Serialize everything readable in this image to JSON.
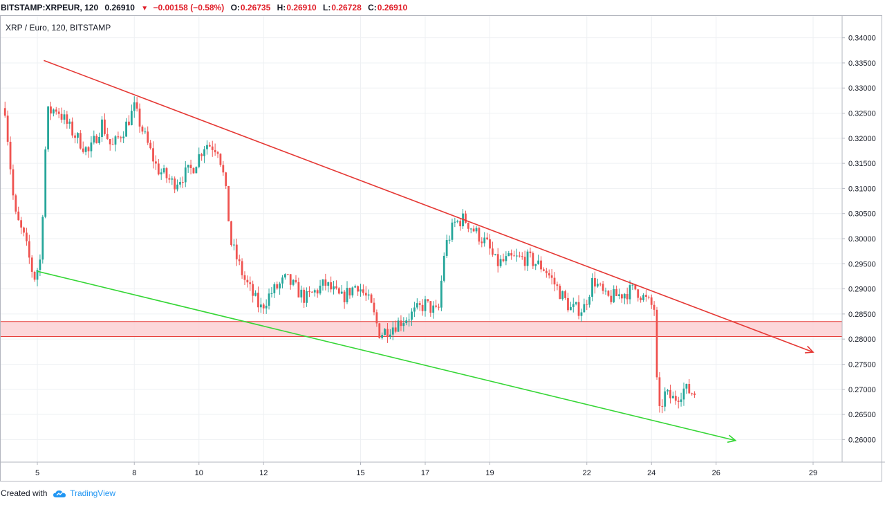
{
  "header": {
    "symbol": "BITSTAMP:XRPEUR, 120",
    "price": "0.26910",
    "change": "−0.00158 (−0.58%)",
    "o_label": "O:",
    "o_value": "0.26735",
    "h_label": "H:",
    "h_value": "0.26910",
    "l_label": "L:",
    "l_value": "0.26728",
    "c_label": "C:",
    "c_value": "0.26910"
  },
  "footer": {
    "created_with": "Created with",
    "brand": "TradingView",
    "logo_icon": "tradingview-cloud-icon"
  },
  "chart_data": {
    "type": "candlestick",
    "title": "XRP / Euro, 120, BITSTAMP",
    "xlabel": "",
    "ylabel": "",
    "x_unit": "day of month",
    "xlim": [
      4.0,
      30.0
    ],
    "ylim": [
      0.2555,
      0.3445
    ],
    "grid": true,
    "y_axis_position": "right",
    "x_ticks": [
      5,
      8,
      10,
      12,
      15,
      17,
      19,
      22,
      24,
      26,
      29
    ],
    "y_ticks": [
      "0.26000",
      "0.26500",
      "0.27000",
      "0.27500",
      "0.28000",
      "0.28500",
      "0.29000",
      "0.29500",
      "0.30000",
      "0.30500",
      "0.31000",
      "0.31500",
      "0.32000",
      "0.32500",
      "0.33000",
      "0.33500",
      "0.34000"
    ],
    "anchors": [
      [
        4.0,
        0.326
      ],
      [
        4.3,
        0.305
      ],
      [
        4.6,
        0.3
      ],
      [
        4.9,
        0.292
      ],
      [
        5.1,
        0.296
      ],
      [
        5.3,
        0.325
      ],
      [
        5.6,
        0.326
      ],
      [
        6.0,
        0.322
      ],
      [
        6.6,
        0.317
      ],
      [
        7.0,
        0.323
      ],
      [
        7.3,
        0.318
      ],
      [
        7.7,
        0.322
      ],
      [
        8.0,
        0.326
      ],
      [
        8.4,
        0.319
      ],
      [
        8.7,
        0.314
      ],
      [
        9.2,
        0.311
      ],
      [
        9.8,
        0.314
      ],
      [
        10.2,
        0.319
      ],
      [
        10.6,
        0.318
      ],
      [
        10.8,
        0.311
      ],
      [
        11.0,
        0.299
      ],
      [
        11.4,
        0.292
      ],
      [
        11.9,
        0.286
      ],
      [
        12.2,
        0.289
      ],
      [
        12.7,
        0.292
      ],
      [
        13.3,
        0.288
      ],
      [
        13.9,
        0.291
      ],
      [
        14.4,
        0.288
      ],
      [
        14.9,
        0.291
      ],
      [
        15.3,
        0.287
      ],
      [
        15.6,
        0.281
      ],
      [
        16.1,
        0.283
      ],
      [
        16.6,
        0.285
      ],
      [
        17.0,
        0.287
      ],
      [
        17.4,
        0.285
      ],
      [
        17.6,
        0.298
      ],
      [
        17.9,
        0.303
      ],
      [
        18.2,
        0.304
      ],
      [
        18.6,
        0.301
      ],
      [
        18.9,
        0.299
      ],
      [
        19.2,
        0.295
      ],
      [
        19.7,
        0.296
      ],
      [
        20.2,
        0.296
      ],
      [
        20.7,
        0.294
      ],
      [
        21.1,
        0.29
      ],
      [
        21.5,
        0.286
      ],
      [
        21.9,
        0.286
      ],
      [
        22.2,
        0.292
      ],
      [
        22.6,
        0.288
      ],
      [
        23.1,
        0.289
      ],
      [
        23.5,
        0.29
      ],
      [
        23.8,
        0.288
      ],
      [
        24.1,
        0.286
      ],
      [
        24.2,
        0.264
      ],
      [
        24.4,
        0.269
      ],
      [
        24.7,
        0.268
      ],
      [
        25.0,
        0.27
      ],
      [
        25.4,
        0.2691
      ]
    ],
    "series": [
      {
        "name": "",
        "kind": "descending-resistance",
        "color": "#e53935",
        "points": [
          [
            5.2,
            0.3355
          ],
          [
            29.0,
            0.2774
          ]
        ],
        "arrow": true
      },
      {
        "name": "",
        "kind": "descending-support",
        "color": "#36d636",
        "points": [
          [
            5.0,
            0.2935
          ],
          [
            26.6,
            0.2598
          ]
        ],
        "arrow": true
      }
    ],
    "zones": [
      {
        "name": "",
        "y_min": 0.2805,
        "y_max": 0.2835,
        "fill": "#fbd0d3",
        "stroke": "#e53935"
      }
    ],
    "colors": {
      "up": "#26a69a",
      "down": "#ef5350",
      "grid": "#eef0f3",
      "axis": "#787b86"
    }
  }
}
